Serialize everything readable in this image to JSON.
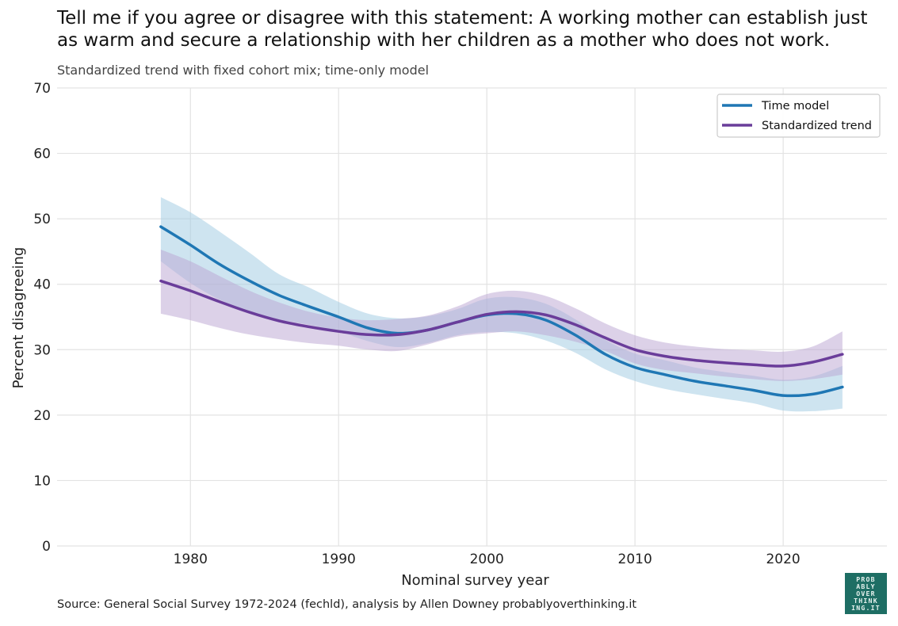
{
  "title": "Tell me if you agree or disagree with this statement: A working mother can establish just as warm and secure a relationship with her children as a mother who does not work.",
  "subtitle": "Standardized trend with fixed cohort mix; time-only model",
  "source": "Source: General Social Survey 1972-2024 (fechld), analysis by Allen Downey probablyoverthinking.it",
  "logo": {
    "lines": [
      "PROB",
      "ABLY",
      "OVER",
      "THINK",
      "ING.IT"
    ],
    "background": "#1e6e64"
  },
  "chart_data": {
    "type": "line",
    "xlabel": "Nominal survey year",
    "ylabel": "Percent disagreeing",
    "xlim": [
      1971,
      2027
    ],
    "ylim": [
      0,
      70
    ],
    "xticks": [
      1980,
      1990,
      2000,
      2010,
      2020
    ],
    "yticks": [
      0,
      10,
      20,
      30,
      40,
      50,
      60,
      70
    ],
    "grid": true,
    "legend": "top-right",
    "series": [
      {
        "name": "Time model",
        "color": "#1f77b4",
        "band_color": "#9ecae1",
        "x": [
          1978,
          1980,
          1982,
          1984,
          1986,
          1988,
          1990,
          1992,
          1994,
          1996,
          1998,
          2000,
          2002,
          2004,
          2006,
          2008,
          2010,
          2012,
          2014,
          2016,
          2018,
          2020,
          2022,
          2024
        ],
        "y": [
          48.8,
          46.0,
          43.0,
          40.5,
          38.3,
          36.6,
          35.0,
          33.3,
          32.5,
          33.0,
          34.2,
          35.3,
          35.5,
          34.5,
          32.2,
          29.3,
          27.3,
          26.2,
          25.2,
          24.5,
          23.8,
          23.0,
          23.2,
          24.3
        ],
        "lower": [
          43.5,
          40.2,
          37.6,
          35.8,
          34.6,
          33.8,
          32.8,
          31.3,
          30.4,
          31.0,
          32.2,
          32.7,
          32.5,
          31.4,
          29.5,
          27.0,
          25.2,
          24.0,
          23.2,
          22.5,
          21.8,
          20.7,
          20.6,
          21.0
        ],
        "upper": [
          53.3,
          51.0,
          48.0,
          44.8,
          41.5,
          39.5,
          37.3,
          35.5,
          34.8,
          35.1,
          36.2,
          37.8,
          38.0,
          37.0,
          34.6,
          31.5,
          29.4,
          28.4,
          27.3,
          26.6,
          26.0,
          25.4,
          25.9,
          27.5
        ]
      },
      {
        "name": "Standardized trend",
        "color": "#6a3d9a",
        "band_color": "#b9a3d1",
        "x": [
          1978,
          1980,
          1982,
          1984,
          1986,
          1988,
          1990,
          1992,
          1994,
          1996,
          1998,
          2000,
          2002,
          2004,
          2006,
          2008,
          2010,
          2012,
          2014,
          2016,
          2018,
          2020,
          2022,
          2024
        ],
        "y": [
          40.5,
          39.0,
          37.3,
          35.7,
          34.4,
          33.5,
          32.8,
          32.3,
          32.3,
          33.0,
          34.2,
          35.4,
          35.8,
          35.3,
          33.8,
          31.8,
          30.0,
          29.0,
          28.4,
          28.0,
          27.7,
          27.5,
          28.1,
          29.3
        ],
        "lower": [
          35.5,
          34.5,
          33.3,
          32.3,
          31.6,
          31.0,
          30.6,
          30.0,
          29.8,
          30.8,
          32.0,
          32.5,
          32.8,
          32.2,
          31.2,
          29.8,
          27.9,
          26.9,
          26.4,
          25.9,
          25.5,
          25.2,
          25.5,
          26.2
        ],
        "upper": [
          45.3,
          43.5,
          41.2,
          39.0,
          37.2,
          35.8,
          34.9,
          34.5,
          34.7,
          35.2,
          36.6,
          38.5,
          39.0,
          38.2,
          36.3,
          34.0,
          32.2,
          31.1,
          30.5,
          30.1,
          29.9,
          29.7,
          30.5,
          32.8
        ]
      }
    ]
  }
}
